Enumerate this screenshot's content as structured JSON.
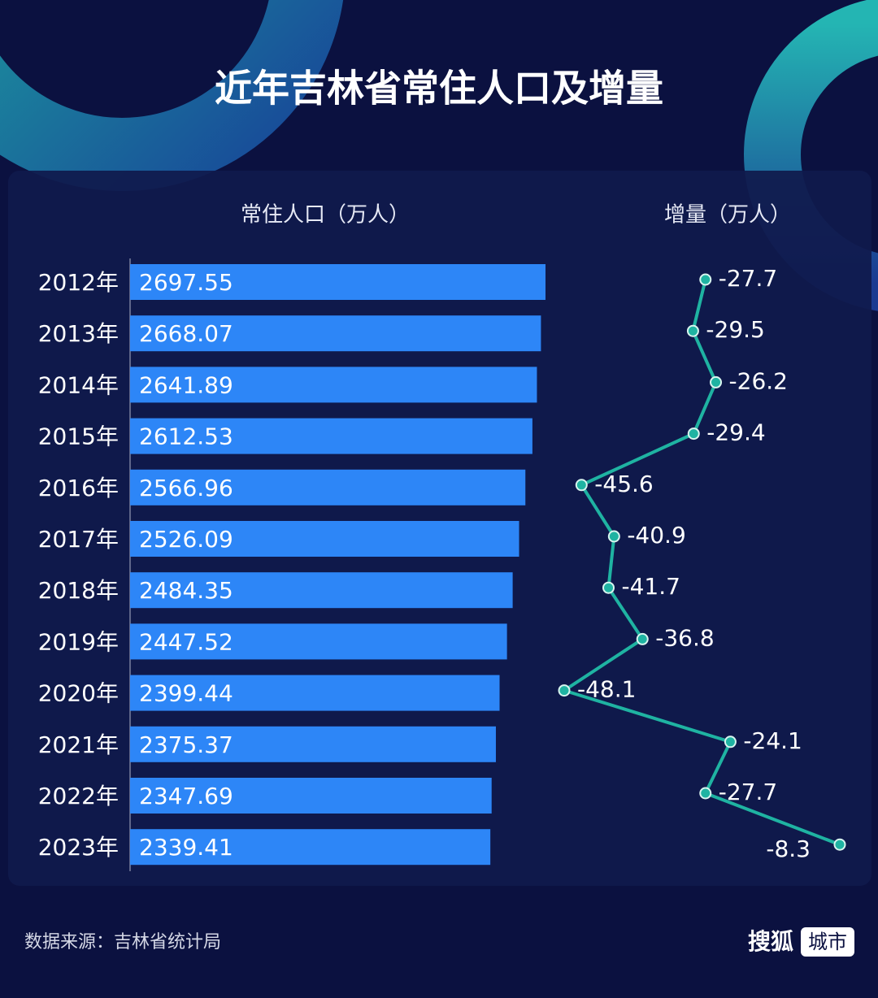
{
  "title": "近年吉林省常住人口及增量",
  "source": "数据来源：吉林省统计局",
  "logo": {
    "brand": "搜狐",
    "tag": "城市"
  },
  "chart_data": {
    "type": "combo",
    "categories": [
      "2012年",
      "2013年",
      "2014年",
      "2015年",
      "2016年",
      "2017年",
      "2018年",
      "2019年",
      "2020年",
      "2021年",
      "2022年",
      "2023年"
    ],
    "series": [
      {
        "name": "常住人口（万人）",
        "type": "bar",
        "color": "#2d86f7",
        "values": [
          2697.55,
          2668.07,
          2641.89,
          2612.53,
          2566.96,
          2526.09,
          2484.35,
          2447.52,
          2399.44,
          2375.37,
          2347.69,
          2339.41
        ]
      },
      {
        "name": "增量（万人）",
        "type": "line",
        "color": "#1fb3a2",
        "values": [
          -27.7,
          -29.5,
          -26.2,
          -29.4,
          -45.6,
          -40.9,
          -41.7,
          -36.8,
          -48.1,
          -24.1,
          -27.7,
          -8.3
        ]
      }
    ]
  }
}
